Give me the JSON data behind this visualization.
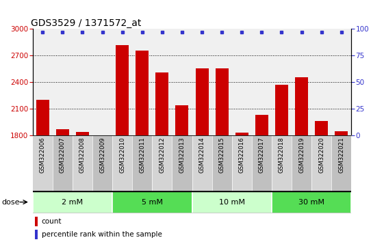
{
  "title": "GDS3529 / 1371572_at",
  "samples": [
    "GSM322006",
    "GSM322007",
    "GSM322008",
    "GSM322009",
    "GSM322010",
    "GSM322011",
    "GSM322012",
    "GSM322013",
    "GSM322014",
    "GSM322015",
    "GSM322016",
    "GSM322017",
    "GSM322018",
    "GSM322019",
    "GSM322020",
    "GSM322021"
  ],
  "counts": [
    2200,
    1870,
    1840,
    1805,
    2820,
    2760,
    2510,
    2140,
    2560,
    2560,
    1830,
    2030,
    2370,
    2460,
    1960,
    1850
  ],
  "percentile": [
    97,
    97,
    97,
    97,
    97,
    97,
    97,
    97,
    97,
    97,
    97,
    97,
    97,
    97,
    97,
    97
  ],
  "ylim_left": [
    1800,
    3000
  ],
  "ylim_right": [
    0,
    100
  ],
  "yticks_left": [
    1800,
    2100,
    2400,
    2700,
    3000
  ],
  "yticks_right": [
    0,
    25,
    50,
    75,
    100
  ],
  "bar_color": "#cc0000",
  "dot_color": "#3333cc",
  "groups": [
    {
      "label": "2 mM",
      "start": 0,
      "end": 4,
      "color": "#ccffcc"
    },
    {
      "label": "5 mM",
      "start": 4,
      "end": 8,
      "color": "#55dd55"
    },
    {
      "label": "10 mM",
      "start": 8,
      "end": 12,
      "color": "#ccffcc"
    },
    {
      "label": "30 mM",
      "start": 12,
      "end": 16,
      "color": "#55dd55"
    }
  ],
  "dose_label": "dose",
  "legend_count_label": "count",
  "legend_percentile_label": "percentile rank within the sample",
  "title_fontsize": 10,
  "tick_bg_color": "#c8c8c8",
  "axis_left_color": "#cc0000",
  "axis_right_color": "#3333cc",
  "fig_bg": "#ffffff"
}
